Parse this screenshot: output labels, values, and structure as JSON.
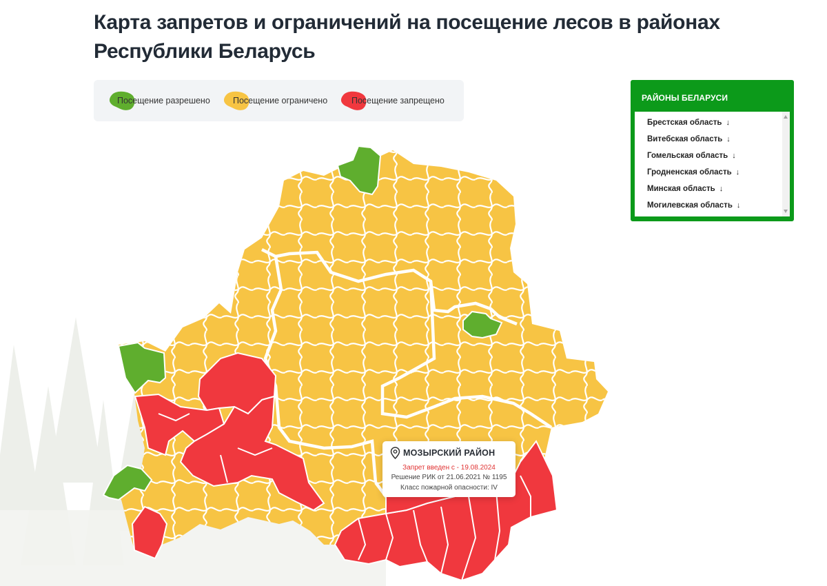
{
  "page": {
    "title_line1": "Карта запретов и ограничений на посещение лесов в районах",
    "title_line2": "Республики Беларусь"
  },
  "legend": [
    {
      "label": "Посещение разрешено",
      "color": "#5fae2e"
    },
    {
      "label": "Посещение ограничено",
      "color": "#f7c444"
    },
    {
      "label": "Посещение запрещено",
      "color": "#f0383e"
    }
  ],
  "regions_panel": {
    "title": "РАЙОНЫ БЕЛАРУСИ",
    "items": [
      {
        "label": "Брестская область",
        "arrow": "↓"
      },
      {
        "label": "Витебская область",
        "arrow": "↓"
      },
      {
        "label": "Гомельская область",
        "arrow": "↓"
      },
      {
        "label": "Гродненская область",
        "arrow": "↓"
      },
      {
        "label": "Минская область",
        "arrow": "↓"
      },
      {
        "label": "Могилевская область",
        "arrow": "↓"
      }
    ]
  },
  "map": {
    "colors": {
      "allowed": "#5fae2e",
      "limited": "#f7c444",
      "banned": "#f0383e",
      "border": "#ffffff"
    },
    "tooltip": {
      "icon": "location-pin-icon",
      "title": "МОЗЫРСКИЙ РАЙОН",
      "ban_text": "Запрет введен с - 19.08.2024",
      "decision_text": "Решение РИК от 21.06.2021 № 1195",
      "class_text": "Класс пожарной опасности: IV"
    }
  }
}
